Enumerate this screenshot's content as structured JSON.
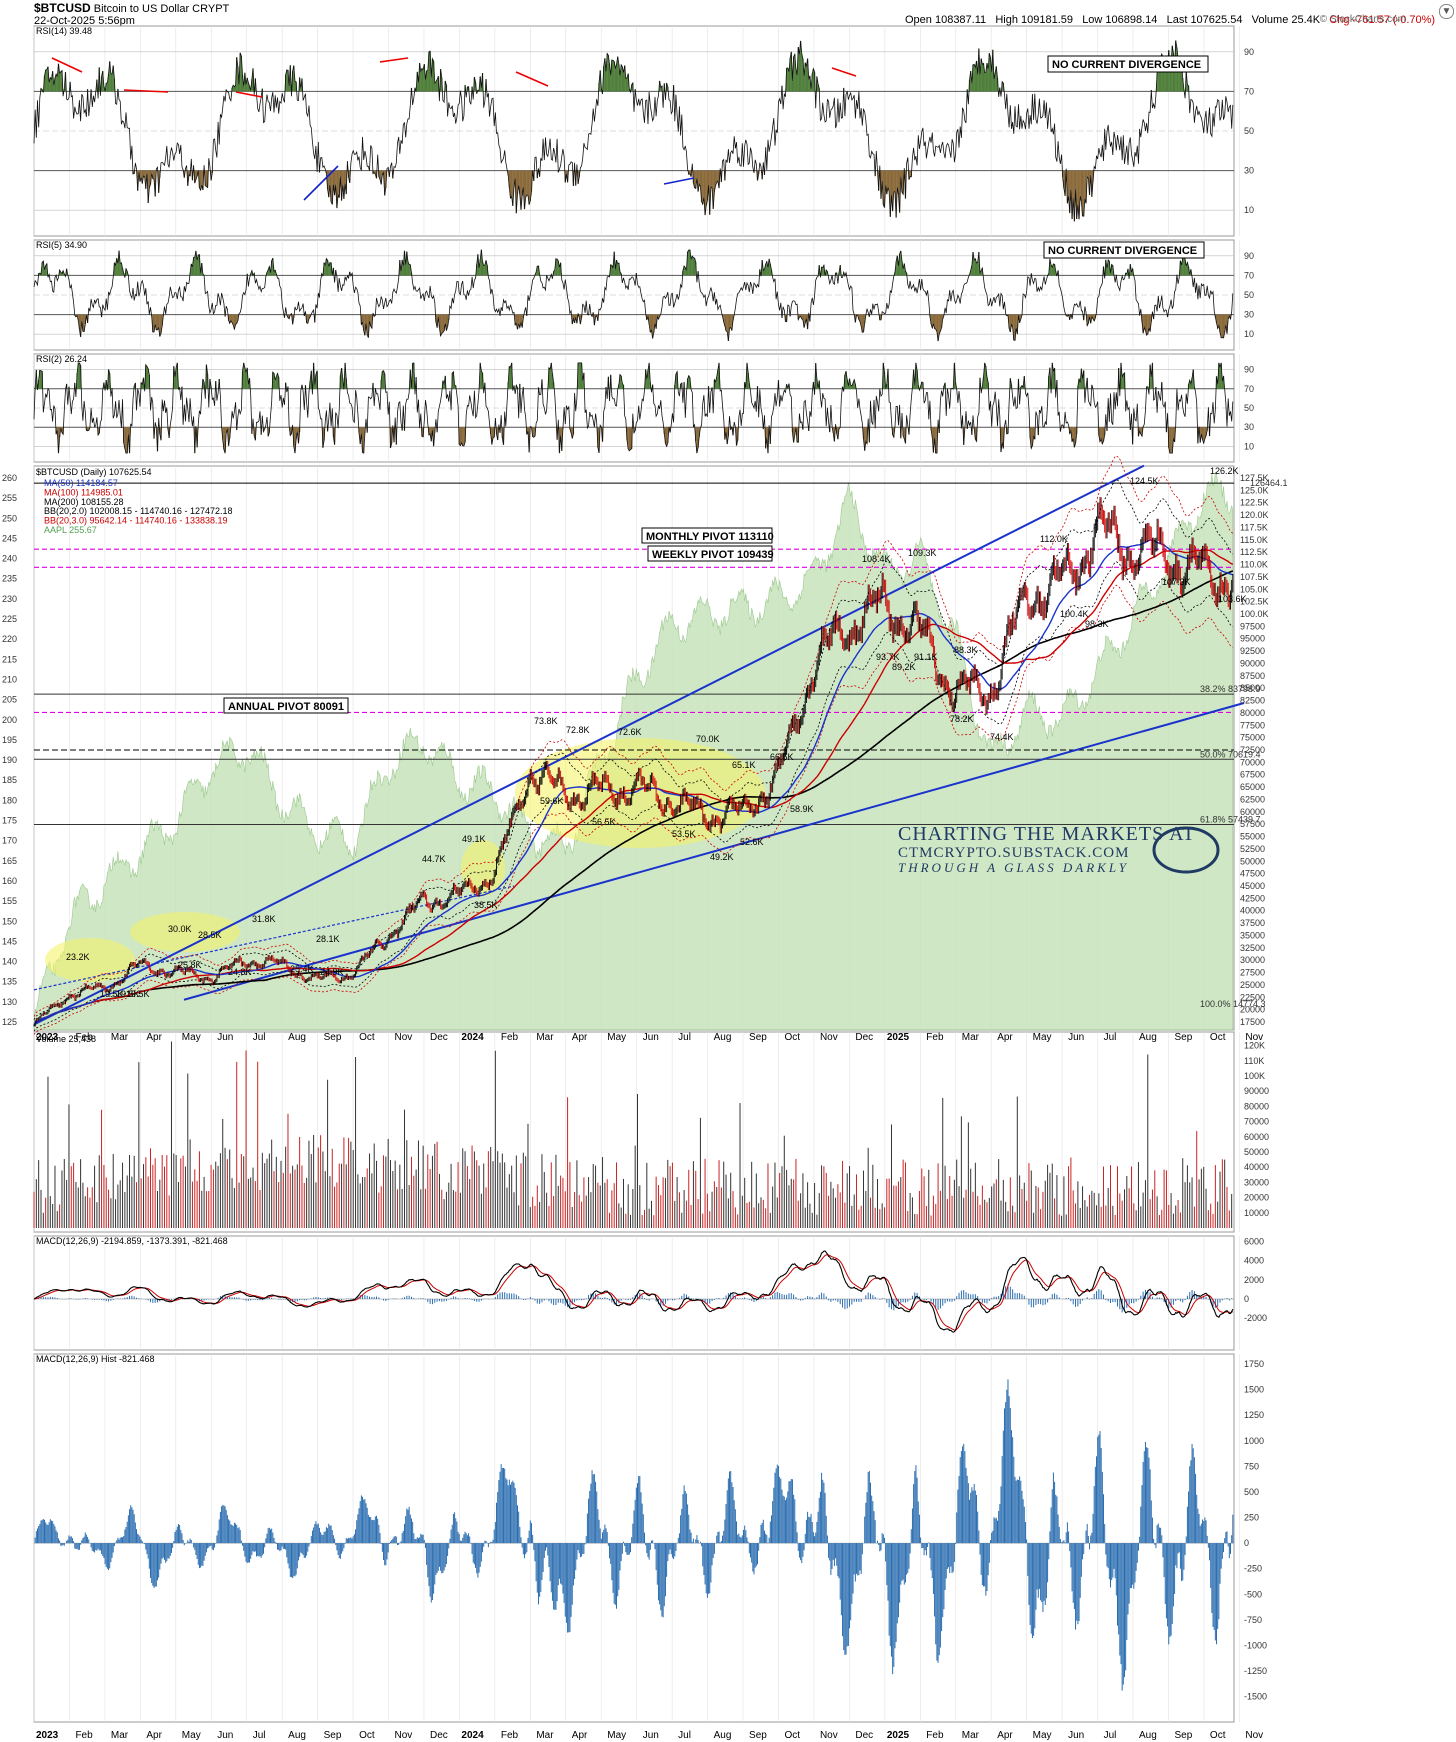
{
  "header": {
    "symbol": "$BTCUSD",
    "name": "Bitcoin to US Dollar",
    "exchange": "CRYPT",
    "date": "22-Oct-2025 5:56pm",
    "open": "Open 108387.11",
    "high": "High 109181.59",
    "low": "Low 106898.14",
    "last": "Last 107625.54",
    "volume": "Volume 25.4K",
    "chg": "Chg -761.57 (-0.70%)",
    "brand": "© StockCharts.com",
    "down_arrow": "▼"
  },
  "colors": {
    "price_up": "#000000",
    "price_down": "#cc0000",
    "rsi_overbought": "#4f7f3a",
    "rsi_oversold": "#8a6a3a",
    "aapl_area": "#c7e3bc",
    "pivot": "#e000e0",
    "trend_blue": "#1a33cc",
    "ma50": "#1a33cc",
    "ma100": "#cc0000",
    "ma200": "#000000",
    "volume_down": "#cc2222",
    "volume_up": "#333333",
    "macd_hist": "#2a6db0",
    "highlight": "#f4f46a"
  },
  "panels": {
    "rsi14": {
      "title": "RSI(14) 39.48",
      "note": "NO CURRENT DIVERGENCE",
      "ticks": [
        "90",
        "70",
        "50",
        "30",
        "10"
      ]
    },
    "rsi5": {
      "title": "RSI(5) 34.90",
      "note": "NO CURRENT DIVERGENCE",
      "ticks": [
        "90",
        "70",
        "50",
        "30",
        "10"
      ]
    },
    "rsi2": {
      "title": "RSI(2) 26.24",
      "ticks": [
        "90",
        "70",
        "50",
        "30",
        "10"
      ]
    },
    "price": {
      "title": "$BTCUSD (Daily) 107625.54",
      "legend": [
        {
          "text": "MA(50) 114184.57",
          "color": "#1a33cc"
        },
        {
          "text": "MA(100) 114985.01",
          "color": "#cc0000"
        },
        {
          "text": "MA(200) 108155.28",
          "color": "#000000"
        },
        {
          "text": "BB(20,2.0) 102008.15 - 114740.16 - 127472.18",
          "color": "#000000"
        },
        {
          "text": "BB(20,3.0) 95642.14 - 114740.16 - 133838.19",
          "color": "#cc0000"
        },
        {
          "text": "AAPL 255.67",
          "color": "#4f9f4f"
        }
      ],
      "right_ticks": [
        "127.5K",
        "125.0K",
        "122.5K",
        "120.0K",
        "117.5K",
        "115.0K",
        "112.5K",
        "110.0K",
        "107.5K",
        "105.0K",
        "102.5K",
        "100.0K",
        "97500",
        "95000",
        "92500",
        "90000",
        "87500",
        "85000",
        "82500",
        "80000",
        "77500",
        "75000",
        "72500",
        "70000",
        "67500",
        "65000",
        "62500",
        "60000",
        "57500",
        "55000",
        "52500",
        "50000",
        "47500",
        "45000",
        "42500",
        "40000",
        "37500",
        "35000",
        "32500",
        "30000",
        "27500",
        "25000",
        "22500",
        "20000",
        "17500"
      ],
      "left_ticks": [
        "260",
        "255",
        "250",
        "245",
        "240",
        "235",
        "230",
        "225",
        "220",
        "215",
        "210",
        "205",
        "200",
        "195",
        "190",
        "185",
        "180",
        "175",
        "170",
        "165",
        "160",
        "155",
        "150",
        "145",
        "140",
        "135",
        "130",
        "125"
      ],
      "pivots": {
        "monthly": "MONTHLY PIVOT 113110",
        "weekly": "WEEKLY PIVOT 109439",
        "annual": "ANNUAL PIVOT 80091"
      },
      "fib": {
        "f382": "38.2% 83798.9",
        "f50": "50.0% 70619.4",
        "f618": "61.8% 57439.7",
        "f100": "100.0% 14774.3",
        "top": "126464.1"
      },
      "annotations": [
        "126.2K",
        "124.5K",
        "112.0K",
        "108.4K",
        "109.3K",
        "107.3K",
        "103.6K",
        "100.4K",
        "98.3K",
        "93.7K",
        "89.2K",
        "91.1K",
        "88.3K",
        "78.2K",
        "74.4K",
        "73.8K",
        "72.8K",
        "72.6K",
        "70.0K",
        "65.1K",
        "66.5K",
        "59.6K",
        "56.5K",
        "53.5K",
        "49.2K",
        "52.6K",
        "58.9K",
        "49.1K",
        "44.7K",
        "38.5K",
        "31.8K",
        "30.0K",
        "28.5K",
        "25.8K",
        "24.8K",
        "25.4K",
        "28.1K",
        "24.9K",
        "23.2K",
        "19.5K",
        "19.5K",
        "19.5K"
      ],
      "watermark": {
        "line1": "CHARTING THE MARKETS AT",
        "line2": "CTMCRYPTO.SUBSTACK.COM",
        "line3": "THROUGH A GLASS DARKLY"
      }
    },
    "volume": {
      "title": "Volume 25,438",
      "ticks": [
        "120K",
        "110K",
        "100K",
        "90000",
        "80000",
        "70000",
        "60000",
        "50000",
        "40000",
        "30000",
        "20000",
        "10000"
      ]
    },
    "macd": {
      "title": "MACD(12,26,9) -2194.859, -1373.391, -821.468",
      "ticks": [
        "6000",
        "4000",
        "2000",
        "0",
        "-2000"
      ]
    },
    "hist": {
      "title": "MACD(12,26,9) Hist -821.468",
      "ticks": [
        "1750",
        "1500",
        "1250",
        "1000",
        "750",
        "500",
        "250",
        "0",
        "-250",
        "-500",
        "-750",
        "-1000",
        "-1250",
        "-1500"
      ]
    }
  },
  "chart_data": {
    "type": "line",
    "title": "$BTCUSD (Daily)",
    "x_axis_labels": [
      "2023",
      "Feb",
      "Mar",
      "Apr",
      "May",
      "Jun",
      "Jul",
      "Aug",
      "Sep",
      "Oct",
      "Nov",
      "Dec",
      "2024",
      "Feb",
      "Mar",
      "Apr",
      "May",
      "Jun",
      "Jul",
      "Aug",
      "Sep",
      "Oct",
      "Nov",
      "Dec",
      "2025",
      "Feb",
      "Mar",
      "Apr",
      "May",
      "Jun",
      "Jul",
      "Aug",
      "Sep",
      "Oct",
      "Nov"
    ],
    "price_path": [
      [
        "2023-01",
        17000
      ],
      [
        "2023-02",
        23000
      ],
      [
        "2023-03",
        24500
      ],
      [
        "2023-04",
        29000
      ],
      [
        "2023-05",
        27500
      ],
      [
        "2023-06",
        26500
      ],
      [
        "2023-07",
        30000
      ],
      [
        "2023-08",
        29000
      ],
      [
        "2023-09",
        26000
      ],
      [
        "2023-10",
        27500
      ],
      [
        "2023-11",
        35000
      ],
      [
        "2023-12",
        42000
      ],
      [
        "2024-01",
        43000
      ],
      [
        "2024-02",
        48000
      ],
      [
        "2024-03",
        68000
      ],
      [
        "2024-04",
        64000
      ],
      [
        "2024-05",
        64000
      ],
      [
        "2024-06",
        65000
      ],
      [
        "2024-07",
        62000
      ],
      [
        "2024-08",
        59000
      ],
      [
        "2024-09",
        60000
      ],
      [
        "2024-10",
        67000
      ],
      [
        "2024-11",
        90000
      ],
      [
        "2024-12",
        98000
      ],
      [
        "2025-01",
        102000
      ],
      [
        "2025-02",
        96000
      ],
      [
        "2025-03",
        84000
      ],
      [
        "2025-04",
        85000
      ],
      [
        "2025-05",
        104000
      ],
      [
        "2025-06",
        106000
      ],
      [
        "2025-07",
        117000
      ],
      [
        "2025-08",
        113000
      ],
      [
        "2025-09",
        112000
      ],
      [
        "2025-10",
        107600
      ]
    ],
    "aapl_path": [
      [
        "2023-01",
        125
      ],
      [
        "2023-02",
        150
      ],
      [
        "2023-03",
        160
      ],
      [
        "2023-04",
        167
      ],
      [
        "2023-05",
        175
      ],
      [
        "2023-06",
        188
      ],
      [
        "2023-07",
        193
      ],
      [
        "2023-08",
        180
      ],
      [
        "2023-09",
        172
      ],
      [
        "2023-10",
        170
      ],
      [
        "2023-11",
        189
      ],
      [
        "2023-12",
        195
      ],
      [
        "2024-01",
        185
      ],
      [
        "2024-02",
        182
      ],
      [
        "2024-03",
        172
      ],
      [
        "2024-04",
        168
      ],
      [
        "2024-05",
        190
      ],
      [
        "2024-06",
        210
      ],
      [
        "2024-07",
        224
      ],
      [
        "2024-08",
        226
      ],
      [
        "2024-09",
        228
      ],
      [
        "2024-10",
        230
      ],
      [
        "2024-11",
        235
      ],
      [
        "2024-12",
        254
      ],
      [
        "2025-01",
        237
      ],
      [
        "2025-02",
        240
      ],
      [
        "2025-03",
        220
      ],
      [
        "2025-04",
        190
      ],
      [
        "2025-05",
        202
      ],
      [
        "2025-06",
        200
      ],
      [
        "2025-07",
        212
      ],
      [
        "2025-08",
        225
      ],
      [
        "2025-09",
        240
      ],
      [
        "2025-10",
        256
      ]
    ],
    "ylim_price": [
      17500,
      127500
    ],
    "ylim_aapl": [
      125,
      260
    ]
  }
}
